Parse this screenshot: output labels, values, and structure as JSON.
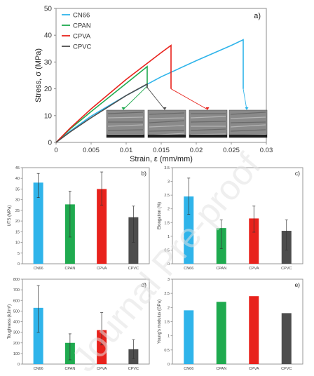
{
  "colors": {
    "CN66": "#2fb4ea",
    "CPAN": "#1faa4f",
    "CPVA": "#e8221c",
    "CPVC": "#4d4d4d",
    "axis": "#8c8c8c",
    "watermark": "#e2e2e2"
  },
  "watermark": "Journal Pre-proof",
  "chart_data": [
    {
      "id": "a",
      "panel_label": "a)",
      "type": "line",
      "xlabel": "Strain, ε (mm/mm)",
      "ylabel": "Stress, σ (MPa)",
      "xlim": [
        0,
        0.03
      ],
      "ylim": [
        0,
        50
      ],
      "xticks": [
        "0",
        "0.005",
        "0.01",
        "0.015",
        "0.02",
        "0.025",
        "0.03"
      ],
      "xtick_values": [
        0,
        0.005,
        0.01,
        0.015,
        0.02,
        0.025,
        0.03
      ],
      "yticks": [
        "0",
        "10",
        "20",
        "30",
        "40",
        "50"
      ],
      "ytick_values": [
        0,
        10,
        20,
        30,
        40,
        50
      ],
      "legend_position": "top-left",
      "series": [
        {
          "name": "CN66",
          "x": [
            0,
            0.002,
            0.005,
            0.01,
            0.015,
            0.02,
            0.025,
            0.0267,
            0.0267
          ],
          "y": [
            0,
            4.2,
            9.8,
            17.5,
            24.5,
            30.5,
            36.2,
            38.3,
            20
          ]
        },
        {
          "name": "CPAN",
          "x": [
            0,
            0.002,
            0.005,
            0.01,
            0.013,
            0.013
          ],
          "y": [
            0,
            5,
            11.5,
            22,
            28.3,
            21
          ]
        },
        {
          "name": "CPVA",
          "x": [
            0,
            0.002,
            0.005,
            0.01,
            0.015,
            0.0164,
            0.0164
          ],
          "y": [
            0,
            5.3,
            12.5,
            23.5,
            33.5,
            36.2,
            20
          ]
        },
        {
          "name": "CPVC",
          "x": [
            0,
            0.002,
            0.005,
            0.01,
            0.013,
            0.013
          ],
          "y": [
            0,
            3.9,
            9.2,
            17.5,
            21.8,
            20.2
          ]
        }
      ],
      "insets": [
        "SEM fracture surface 1",
        "SEM fracture surface 2",
        "SEM fracture surface 3",
        "SEM fracture surface 4"
      ]
    },
    {
      "id": "b",
      "panel_label": "b)",
      "type": "bar",
      "ylabel": "UTS (MPa)",
      "ylim": [
        0,
        45
      ],
      "yticks": [
        "0",
        "5",
        "10",
        "15",
        "20",
        "25",
        "30",
        "35",
        "40",
        "45"
      ],
      "ytick_values": [
        0,
        5,
        10,
        15,
        20,
        25,
        30,
        35,
        40,
        45
      ],
      "categories": [
        "CN66",
        "CPAN",
        "CPVA",
        "CPVC"
      ],
      "values": [
        38,
        27.8,
        35,
        21.8
      ],
      "error_low": [
        31,
        12.5,
        27.5,
        10
      ],
      "error_high": [
        42.3,
        34,
        43,
        27
      ]
    },
    {
      "id": "c",
      "panel_label": "c)",
      "type": "bar",
      "ylabel": "Elongation (%)",
      "ylim": [
        0,
        3.5
      ],
      "yticks": [
        "0",
        "0.5",
        "1",
        "1.5",
        "2",
        "2.5",
        "3",
        "3.5"
      ],
      "ytick_values": [
        0,
        0.5,
        1,
        1.5,
        2,
        2.5,
        3,
        3.5
      ],
      "categories": [
        "CN66",
        "CPAN",
        "CPVA",
        "CPVC"
      ],
      "values": [
        2.45,
        1.3,
        1.65,
        1.2
      ],
      "error_low": [
        1.8,
        0.55,
        1.15,
        0.5
      ],
      "error_high": [
        3.12,
        1.6,
        2.1,
        1.6
      ]
    },
    {
      "id": "d",
      "panel_label": "d)",
      "type": "bar",
      "ylabel": "Toughness (kJ/m³)",
      "ylim": [
        0,
        800
      ],
      "yticks": [
        "0",
        "100",
        "200",
        "300",
        "400",
        "500",
        "600",
        "700",
        "800"
      ],
      "ytick_values": [
        0,
        100,
        200,
        300,
        400,
        500,
        600,
        700,
        800
      ],
      "categories": [
        "CN66",
        "CPAN",
        "CPVA",
        "CPVC"
      ],
      "values": [
        530,
        200,
        320,
        140
      ],
      "error_low": [
        300,
        40,
        180,
        50
      ],
      "error_high": [
        740,
        285,
        485,
        230
      ]
    },
    {
      "id": "e",
      "panel_label": "e)",
      "type": "bar",
      "ylabel": "Young's modulus (GPa)",
      "ylim": [
        0,
        3
      ],
      "yticks": [
        "0",
        "0.5",
        "1",
        "1.5",
        "2",
        "2.5",
        "3"
      ],
      "ytick_values": [
        0,
        0.5,
        1,
        1.5,
        2,
        2.5,
        3
      ],
      "categories": [
        "CN66",
        "CPAN",
        "CPVA",
        "CPVC"
      ],
      "values": [
        1.9,
        2.2,
        2.4,
        1.8
      ]
    }
  ]
}
